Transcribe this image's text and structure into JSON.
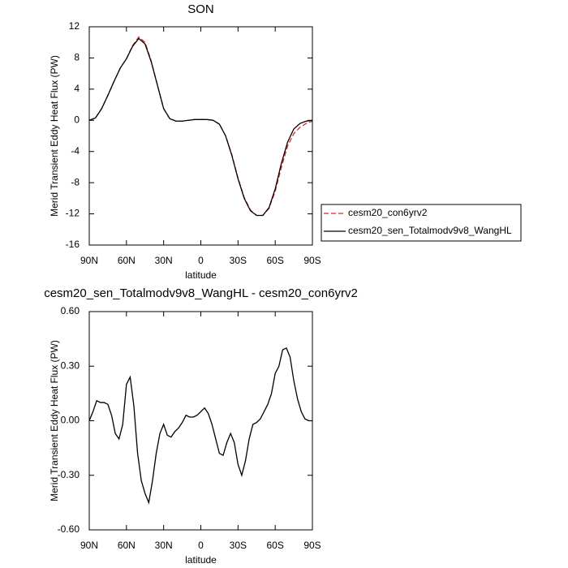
{
  "chart_data": [
    {
      "type": "line",
      "title": "SON",
      "xlabel": "latitude",
      "ylabel": "Merid Transient Eddy Heat Flux (PW)",
      "x": [
        90,
        85,
        80,
        75,
        70,
        65,
        60,
        55,
        50,
        45,
        40,
        35,
        30,
        25,
        20,
        15,
        10,
        5,
        0,
        -5,
        -10,
        -15,
        -20,
        -25,
        -30,
        -35,
        -40,
        -45,
        -50,
        -55,
        -60,
        -65,
        -70,
        -75,
        -80,
        -85,
        -90
      ],
      "series": [
        {
          "name": "cesm20_con6yrv2",
          "color": "#e8231f",
          "dash": true,
          "values": [
            0,
            0.3,
            1.5,
            3.2,
            5,
            6.7,
            7.9,
            9.6,
            10.7,
            10,
            7.6,
            4.5,
            1.5,
            0.2,
            -0.1,
            -0.1,
            0,
            0.1,
            0.1,
            0.1,
            0,
            -0.5,
            -2,
            -4.4,
            -7.4,
            -9.9,
            -11.5,
            -12.2,
            -12.2,
            -11.3,
            -9.1,
            -6,
            -3.3,
            -1.7,
            -0.9,
            -0.4,
            -0.1
          ]
        },
        {
          "name": "cesm20_sen_Totalmodv9v8_WangHL",
          "color": "#000000",
          "dash": false,
          "values": [
            0,
            0.3,
            1.5,
            3.2,
            5,
            6.7,
            7.9,
            9.5,
            10.5,
            9.8,
            7.5,
            4.5,
            1.5,
            0.2,
            -0.1,
            -0.1,
            0,
            0.1,
            0.1,
            0.1,
            0,
            -0.5,
            -2,
            -4.5,
            -7.5,
            -10,
            -11.6,
            -12.2,
            -12.2,
            -11.2,
            -8.8,
            -5.5,
            -2.8,
            -1.1,
            -0.4,
            -0.1,
            0
          ]
        }
      ],
      "xlim": [
        90,
        -90
      ],
      "xticks": [
        {
          "value": 90,
          "label": "90N"
        },
        {
          "value": 60,
          "label": "60N"
        },
        {
          "value": 30,
          "label": "30N"
        },
        0,
        {
          "value": -30,
          "label": "30S"
        },
        {
          "value": -60,
          "label": "60S"
        },
        {
          "value": -90,
          "label": "90S"
        }
      ],
      "ylim": [
        -16,
        12
      ],
      "yticks": [
        -16,
        -12,
        -8,
        -4,
        0,
        4,
        8,
        12
      ],
      "legend": "right"
    },
    {
      "type": "line",
      "title": "cesm20_sen_Totalmodv9v8_WangHL - cesm20_con6yrv2",
      "xlabel": "latitude",
      "ylabel": "Merid Transient Eddy Heat Flux (PW)",
      "x": [
        90,
        87,
        84,
        81,
        78,
        75,
        72,
        69,
        66,
        63,
        60,
        57,
        54,
        51,
        48,
        45,
        42,
        39,
        36,
        33,
        30,
        27,
        24,
        21,
        18,
        15,
        12,
        9,
        6,
        3,
        0,
        -3,
        -6,
        -9,
        -12,
        -15,
        -18,
        -21,
        -24,
        -27,
        -30,
        -33,
        -36,
        -39,
        -42,
        -45,
        -48,
        -51,
        -54,
        -57,
        -60,
        -63,
        -66,
        -69,
        -72,
        -75,
        -78,
        -81,
        -84,
        -87,
        -90
      ],
      "series": [
        {
          "color": "#000000",
          "dash": false,
          "values": [
            0,
            0.05,
            0.11,
            0.1,
            0.1,
            0.09,
            0.03,
            -0.07,
            -0.1,
            -0.02,
            0.2,
            0.24,
            0.08,
            -0.18,
            -0.33,
            -0.4,
            -0.45,
            -0.33,
            -0.18,
            -0.07,
            -0.02,
            -0.08,
            -0.09,
            -0.06,
            -0.04,
            -0.01,
            0.03,
            0.02,
            0.02,
            0.03,
            0.05,
            0.07,
            0.04,
            -0.02,
            -0.1,
            -0.18,
            -0.19,
            -0.12,
            -0.07,
            -0.12,
            -0.24,
            -0.3,
            -0.22,
            -0.1,
            -0.02,
            -0.01,
            0.01,
            0.05,
            0.09,
            0.15,
            0.26,
            0.3,
            0.39,
            0.4,
            0.35,
            0.22,
            0.12,
            0.05,
            0.01,
            0,
            0
          ]
        }
      ],
      "xlim": [
        90,
        -90
      ],
      "xticks": [
        {
          "value": 90,
          "label": "90N"
        },
        {
          "value": 60,
          "label": "60N"
        },
        {
          "value": 30,
          "label": "30N"
        },
        0,
        {
          "value": -30,
          "label": "30S"
        },
        {
          "value": -60,
          "label": "60S"
        },
        {
          "value": -90,
          "label": "90S"
        }
      ],
      "ylim": [
        -0.6,
        0.6
      ],
      "yticks": [
        {
          "value": -0.6,
          "label": "-0.60"
        },
        {
          "value": -0.3,
          "label": "-0.30"
        },
        {
          "value": 0,
          "label": "0.00"
        },
        {
          "value": 0.3,
          "label": "0.30"
        },
        {
          "value": 0.6,
          "label": "0.60"
        }
      ]
    }
  ]
}
